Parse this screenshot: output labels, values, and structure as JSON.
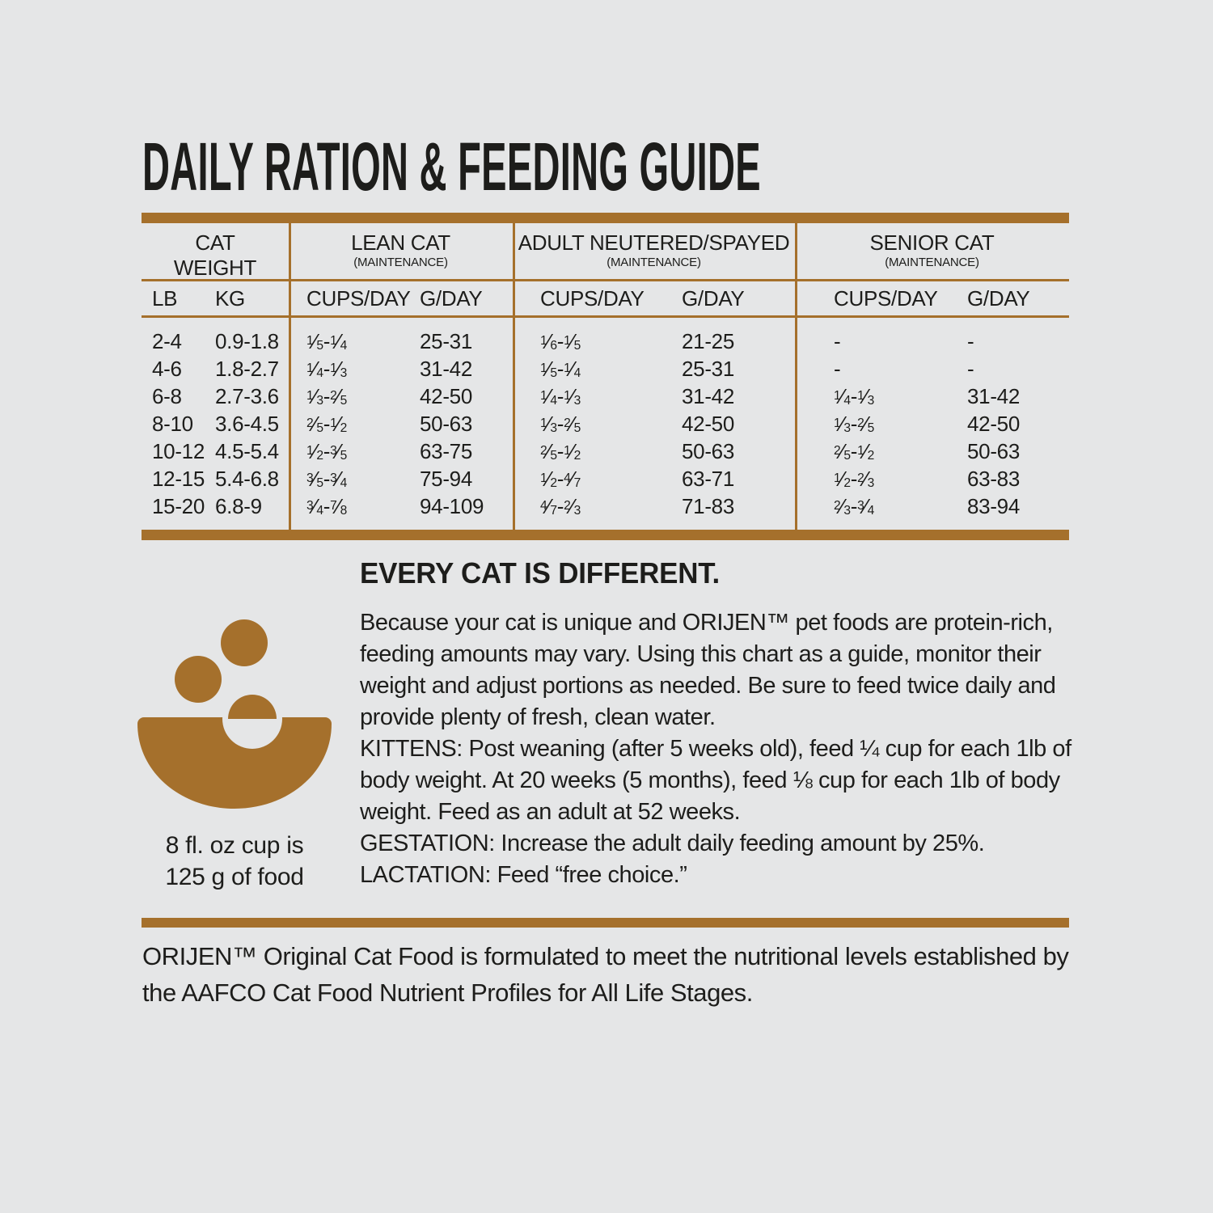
{
  "page": {
    "background_color": "#E5E6E7",
    "accent_brown": "#A5702C",
    "text_color": "#1D1D1B"
  },
  "title": "DAILY RATION & FEEDING GUIDE",
  "table": {
    "groups": [
      {
        "label": "CAT\nWEIGHT",
        "sub": ""
      },
      {
        "label": "LEAN CAT",
        "sub": "(MAINTENANCE)"
      },
      {
        "label": "ADULT NEUTERED/SPAYED",
        "sub": "(MAINTENANCE)"
      },
      {
        "label": "SENIOR CAT",
        "sub": "(MAINTENANCE)"
      }
    ],
    "columns": [
      "LB",
      "KG",
      "CUPS/DAY",
      "G/DAY",
      "CUPS/DAY",
      "G/DAY",
      "CUPS/DAY",
      "G/DAY"
    ],
    "rows": [
      [
        "2-4",
        "0.9-1.8",
        "1/5-1/4",
        "25-31",
        "1/6-1/5",
        "21-25",
        "-",
        "-"
      ],
      [
        "4-6",
        "1.8-2.7",
        "1/4-1/3",
        "31-42",
        "1/5-1/4",
        "25-31",
        "-",
        "-"
      ],
      [
        "6-8",
        "2.7-3.6",
        "1/3-2/5",
        "42-50",
        "1/4-1/3",
        "31-42",
        "1/4-1/3",
        "31-42"
      ],
      [
        "8-10",
        "3.6-4.5",
        "2/5-1/2",
        "50-63",
        "1/3-2/5",
        "42-50",
        "1/3-2/5",
        "42-50"
      ],
      [
        "10-12",
        "4.5-5.4",
        "1/2-3/5",
        "63-75",
        "2/5-1/2",
        "50-63",
        "2/5-1/2",
        "50-63"
      ],
      [
        "12-15",
        "5.4-6.8",
        "3/5-3/4",
        "75-94",
        "1/2-4/7",
        "63-71",
        "1/2-2/3",
        "63-83"
      ],
      [
        "15-20",
        "6.8-9",
        "3/4-7/8",
        "94-109",
        "4/7-2/3",
        "71-83",
        "2/3-3/4",
        "83-94"
      ]
    ]
  },
  "info": {
    "heading": "EVERY CAT IS DIFFERENT.",
    "para1": "Because your cat is unique and ORIJEN™ pet foods are protein-rich, feeding amounts may vary. Using this chart as a guide, monitor their weight and adjust portions as needed. Be sure to feed twice daily and provide plenty of fresh, clean water.",
    "kittens": "KITTENS: Post weaning (after 5 weeks old), feed ¼ cup for each 1lb of body weight. At 20 weeks (5 months), feed ⅛ cup for each 1lb of body weight. Feed as an adult at 52 weeks.",
    "gestation": "GESTATION: Increase the adult daily feeding amount by 25%.",
    "lactation": "LACTATION: Feed “free choice.”"
  },
  "cup_note": {
    "line1": "8 fl. oz cup is",
    "line2": "125 g of food"
  },
  "icons": {
    "food_bowl_icon_color": "#A5702C"
  },
  "footer": "ORIJEN™ Original Cat Food is formulated to meet the nutritional levels established by the AAFCO Cat Food Nutrient Profiles for All Life Stages."
}
